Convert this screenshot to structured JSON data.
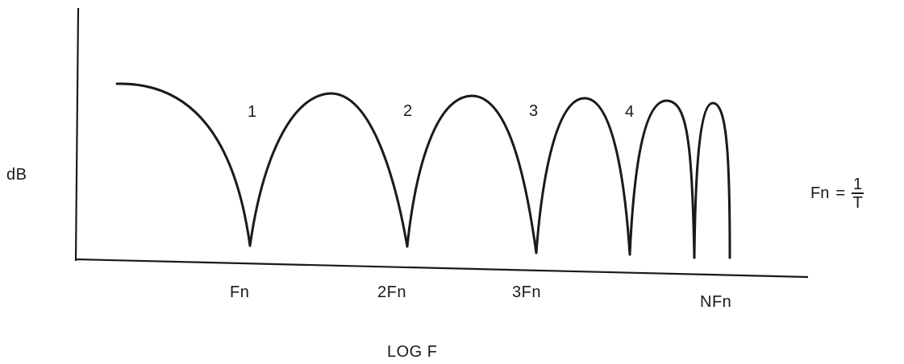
{
  "y_axis_label": "dB",
  "x_axis_label": "LOG F",
  "formula": {
    "lhs": "Fn",
    "equals": "=",
    "numerator": "1",
    "denominator": "T"
  },
  "lobe_labels": [
    "1",
    "2",
    "3",
    "4"
  ],
  "tick_labels": [
    "Fn",
    "2Fn",
    "3Fn",
    "NFn"
  ],
  "stroke_color": "#1a1a1a"
}
